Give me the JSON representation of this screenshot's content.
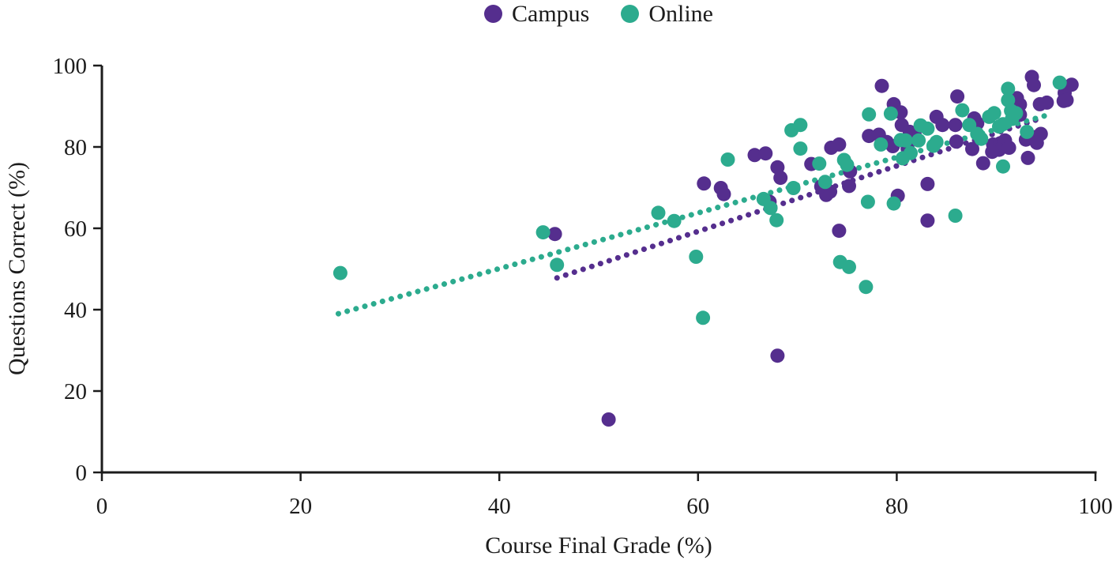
{
  "chart_data": {
    "type": "scatter",
    "title": "",
    "xlabel": "Course Final Grade (%)",
    "ylabel": "Questions Correct (%)",
    "xlim": [
      0,
      100
    ],
    "ylim": [
      0,
      100
    ],
    "x_ticks": [
      0,
      20,
      40,
      60,
      80,
      100
    ],
    "y_ticks": [
      0,
      20,
      40,
      60,
      80,
      100
    ],
    "grid": false,
    "legend_position": "top-center",
    "axis_color": "#1c1c1c",
    "series": [
      {
        "name": "Campus",
        "color": "#552E8E",
        "marker": "circle",
        "trend_line": {
          "style": "dotted",
          "from": [
            45.8,
            47.8
          ],
          "to": [
            94.0,
            86.6
          ]
        },
        "points": [
          [
            45.6,
            58.6
          ],
          [
            51,
            13
          ],
          [
            68,
            28.7
          ],
          [
            60.6,
            71
          ],
          [
            62.3,
            69.9
          ],
          [
            62.6,
            68.4
          ],
          [
            65.7,
            78
          ],
          [
            66.8,
            78.4
          ],
          [
            68,
            75
          ],
          [
            68.3,
            72.4
          ],
          [
            67.2,
            66.5
          ],
          [
            71.4,
            75.8
          ],
          [
            73.4,
            79.8
          ],
          [
            74.2,
            80.6
          ],
          [
            72.4,
            70.3
          ],
          [
            72.9,
            68.2
          ],
          [
            73.3,
            69
          ],
          [
            75.2,
            70.4
          ],
          [
            75.3,
            74
          ],
          [
            74.2,
            59.4
          ],
          [
            78.5,
            95
          ],
          [
            79.7,
            90.5
          ],
          [
            80.4,
            88.5
          ],
          [
            77.2,
            82.7
          ],
          [
            78.2,
            83
          ],
          [
            79,
            81.2
          ],
          [
            79.6,
            80.2
          ],
          [
            80.5,
            85.4
          ],
          [
            81.3,
            83.7
          ],
          [
            81.8,
            83.1
          ],
          [
            81.1,
            79.6
          ],
          [
            80.1,
            68
          ],
          [
            83.1,
            70.9
          ],
          [
            83.1,
            61.9
          ],
          [
            84,
            87.4
          ],
          [
            84.6,
            85.4
          ],
          [
            85.9,
            85.4
          ],
          [
            86,
            81.3
          ],
          [
            86.1,
            92.4
          ],
          [
            87.8,
            87
          ],
          [
            88.1,
            85.8
          ],
          [
            87.6,
            79.5
          ],
          [
            88.7,
            76
          ],
          [
            89.7,
            80.6
          ],
          [
            90.4,
            80.9
          ],
          [
            90.9,
            81.6
          ],
          [
            90.3,
            79.3
          ],
          [
            91.3,
            79.8
          ],
          [
            89.6,
            78.8
          ],
          [
            92.1,
            92
          ],
          [
            92.4,
            90.4
          ],
          [
            92.4,
            87.9
          ],
          [
            94.4,
            90.5
          ],
          [
            95.1,
            90.9
          ],
          [
            93,
            81.8
          ],
          [
            93.8,
            82.4
          ],
          [
            94.5,
            83.2
          ],
          [
            94.1,
            81
          ],
          [
            93.2,
            77.3
          ],
          [
            93.6,
            97.2
          ],
          [
            93.8,
            95.2
          ],
          [
            97.6,
            95.3
          ],
          [
            96.9,
            93.3
          ],
          [
            96.8,
            91.3
          ],
          [
            97.1,
            91.5
          ]
        ]
      },
      {
        "name": "Online",
        "color": "#2CAB8E",
        "marker": "circle",
        "trend_line": {
          "style": "dotted",
          "from": [
            23.8,
            39.0
          ],
          "to": [
            95.7,
            88.2
          ]
        },
        "points": [
          [
            24,
            49
          ],
          [
            44.4,
            59
          ],
          [
            45.8,
            51
          ],
          [
            56,
            63.8
          ],
          [
            57.6,
            61.8
          ],
          [
            59.8,
            53
          ],
          [
            60.5,
            38
          ],
          [
            63,
            76.9
          ],
          [
            66.6,
            67.2
          ],
          [
            67.3,
            65
          ],
          [
            67.9,
            62
          ],
          [
            69.6,
            69.9
          ],
          [
            69.4,
            84.1
          ],
          [
            70.3,
            85.4
          ],
          [
            70.3,
            79.6
          ],
          [
            72.2,
            75.9
          ],
          [
            72.8,
            71.4
          ],
          [
            74.7,
            76.8
          ],
          [
            75,
            75.6
          ],
          [
            74.3,
            51.7
          ],
          [
            75.2,
            50.5
          ],
          [
            76.9,
            45.6
          ],
          [
            77.1,
            66.5
          ],
          [
            79.7,
            66.1
          ],
          [
            77.2,
            88
          ],
          [
            79.4,
            88.2
          ],
          [
            78.4,
            80.6
          ],
          [
            80.4,
            81.7
          ],
          [
            80.9,
            81.6
          ],
          [
            80.6,
            77.2
          ],
          [
            81.4,
            78.5
          ],
          [
            82.4,
            85.3
          ],
          [
            83.1,
            84.5
          ],
          [
            82.2,
            81.6
          ],
          [
            83.7,
            80.3
          ],
          [
            84,
            81.2
          ],
          [
            85.9,
            63.1
          ],
          [
            86.6,
            89
          ],
          [
            87.3,
            85.4
          ],
          [
            88.1,
            83.2
          ],
          [
            88.5,
            82
          ],
          [
            89.3,
            87.4
          ],
          [
            89.8,
            88.3
          ],
          [
            90.3,
            85
          ],
          [
            90.7,
            85.6
          ],
          [
            91.6,
            86.9
          ],
          [
            91.2,
            94.3
          ],
          [
            91.2,
            91.5
          ],
          [
            91.5,
            88.9
          ],
          [
            92,
            88.3
          ],
          [
            90.7,
            75.2
          ],
          [
            93.1,
            83.7
          ],
          [
            96.4,
            95.8
          ]
        ]
      }
    ]
  }
}
